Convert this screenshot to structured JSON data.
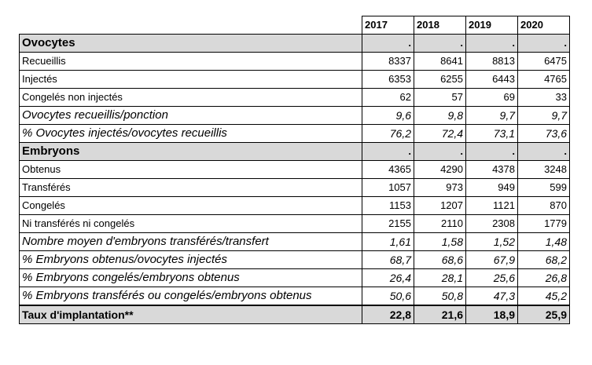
{
  "table": {
    "years": [
      "2017",
      "2018",
      "2019",
      "2020"
    ],
    "rows": [
      {
        "label": "Ovocytes",
        "values": [
          ".",
          ".",
          ".",
          "."
        ],
        "kind": "section"
      },
      {
        "label": "Recueillis",
        "values": [
          "8337",
          "8641",
          "8813",
          "6475"
        ],
        "kind": "plain"
      },
      {
        "label": "Injectés",
        "values": [
          "6353",
          "6255",
          "6443",
          "4765"
        ],
        "kind": "plain"
      },
      {
        "label": "Congelés non injectés",
        "values": [
          "62",
          "57",
          "69",
          "33"
        ],
        "kind": "plain"
      },
      {
        "label": "Ovocytes recueillis/ponction",
        "values": [
          "9,6",
          "9,8",
          "9,7",
          "9,7"
        ],
        "kind": "italic"
      },
      {
        "label": "% Ovocytes injectés/ovocytes recueillis",
        "values": [
          "76,2",
          "72,4",
          "73,1",
          "73,6"
        ],
        "kind": "italic"
      },
      {
        "label": "Embryons",
        "values": [
          ".",
          ".",
          ".",
          "."
        ],
        "kind": "section"
      },
      {
        "label": "Obtenus",
        "values": [
          "4365",
          "4290",
          "4378",
          "3248"
        ],
        "kind": "plain"
      },
      {
        "label": "Transférés",
        "values": [
          "1057",
          "973",
          "949",
          "599"
        ],
        "kind": "plain"
      },
      {
        "label": "Congelés",
        "values": [
          "1153",
          "1207",
          "1121",
          "870"
        ],
        "kind": "plain"
      },
      {
        "label": "Ni transférés ni congelés",
        "values": [
          "2155",
          "2110",
          "2308",
          "1779"
        ],
        "kind": "plain"
      },
      {
        "label": "Nombre moyen d'embryons transférés/transfert",
        "values": [
          "1,61",
          "1,58",
          "1,52",
          "1,48"
        ],
        "kind": "italic"
      },
      {
        "label": "% Embryons obtenus/ovocytes injectés",
        "values": [
          "68,7",
          "68,6",
          "67,9",
          "68,2"
        ],
        "kind": "italic"
      },
      {
        "label": "% Embryons congelés/embryons obtenus",
        "values": [
          "26,4",
          "28,1",
          "25,6",
          "26,8"
        ],
        "kind": "italic"
      },
      {
        "label": "% Embryons transférés ou congelés/embryons obtenus",
        "values": [
          "50,6",
          "50,8",
          "47,3",
          "45,2"
        ],
        "kind": "italic"
      },
      {
        "label": "Taux d'implantation**",
        "values": [
          "22,8",
          "21,6",
          "18,9",
          "25,9"
        ],
        "kind": "total"
      }
    ]
  }
}
